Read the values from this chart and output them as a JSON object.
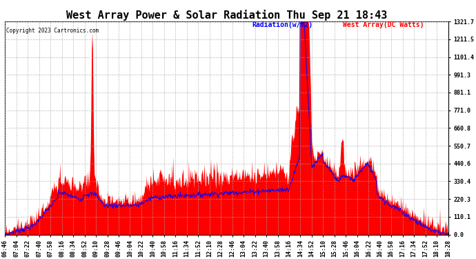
{
  "title": "West Array Power & Solar Radiation Thu Sep 21 18:43",
  "copyright": "Copyright 2023 Cartronics.com",
  "legend_radiation": "Radiation(w/m2)",
  "legend_west_array": "West Array(DC Watts)",
  "yticks": [
    0.0,
    110.1,
    220.3,
    330.4,
    440.6,
    550.7,
    660.8,
    771.0,
    881.1,
    991.3,
    1101.4,
    1211.5,
    1321.7
  ],
  "ymax": 1321.7,
  "ymin": 0.0,
  "bg_color": "#ffffff",
  "grid_color": "#aaaaaa",
  "red_color": "#ff0000",
  "blue_color": "#0000ff",
  "xtick_labels": [
    "06:46",
    "07:04",
    "07:22",
    "07:40",
    "07:58",
    "08:16",
    "08:34",
    "08:52",
    "09:10",
    "09:28",
    "09:46",
    "10:04",
    "10:22",
    "10:40",
    "10:58",
    "11:16",
    "11:34",
    "11:52",
    "12:10",
    "12:28",
    "12:46",
    "13:04",
    "13:22",
    "13:40",
    "13:58",
    "14:16",
    "14:34",
    "14:52",
    "15:10",
    "15:28",
    "15:46",
    "16:04",
    "16:22",
    "16:40",
    "16:58",
    "17:16",
    "17:34",
    "17:52",
    "18:10",
    "18:28"
  ],
  "n_points": 800,
  "title_fontsize": 11,
  "tick_fontsize": 6
}
